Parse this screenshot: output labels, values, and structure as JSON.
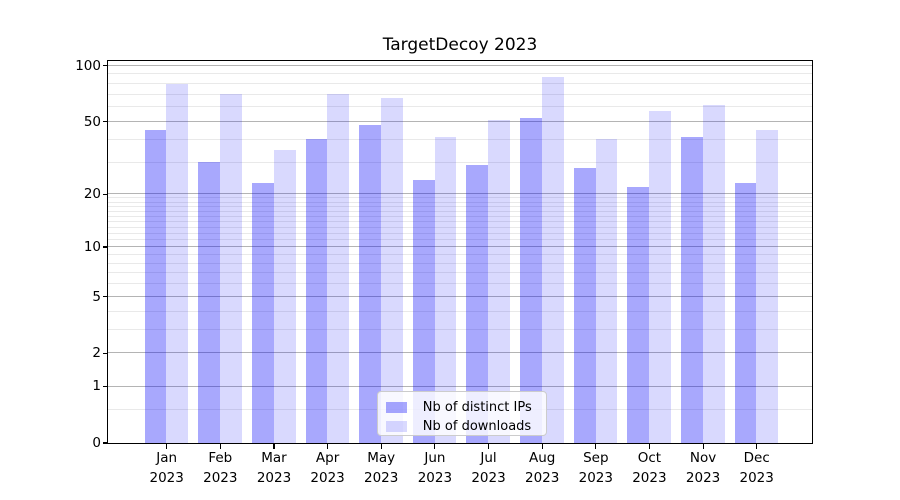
{
  "chart_data": {
    "type": "bar",
    "title": "TargetDecoy 2023",
    "categories": [
      "Jan",
      "Feb",
      "Mar",
      "Apr",
      "May",
      "Jun",
      "Jul",
      "Aug",
      "Sep",
      "Oct",
      "Nov",
      "Dec"
    ],
    "category_year": "2023",
    "series": [
      {
        "name": "Nb of distinct IPs",
        "color": "#0000fa",
        "alpha": 0.34,
        "values": [
          45,
          30,
          23,
          40,
          48,
          24,
          29,
          52,
          28,
          22,
          41,
          23
        ]
      },
      {
        "name": "Nb of downloads",
        "color": "#0000fa",
        "alpha": 0.15,
        "values": [
          80,
          70,
          35,
          70,
          67,
          41,
          51,
          87,
          40,
          57,
          61,
          45
        ]
      }
    ],
    "xlabel": "",
    "ylabel": "",
    "yscale": "log1p",
    "ylim": [
      0,
      106
    ],
    "y_ticks": [
      0,
      1,
      2,
      5,
      10,
      20,
      50,
      100
    ],
    "y_minor_ticks": [
      0.5,
      3,
      4,
      6,
      7,
      8,
      9,
      11,
      12,
      13,
      14,
      15,
      16,
      17,
      18,
      19,
      30,
      40,
      60,
      70,
      80,
      90
    ],
    "grid": {
      "major_color": "#b4b4b4",
      "minor_color": "#e9e9e9"
    },
    "legend": {
      "position": "lower center",
      "labels": [
        "Nb of distinct IPs",
        "Nb of downloads"
      ]
    }
  }
}
